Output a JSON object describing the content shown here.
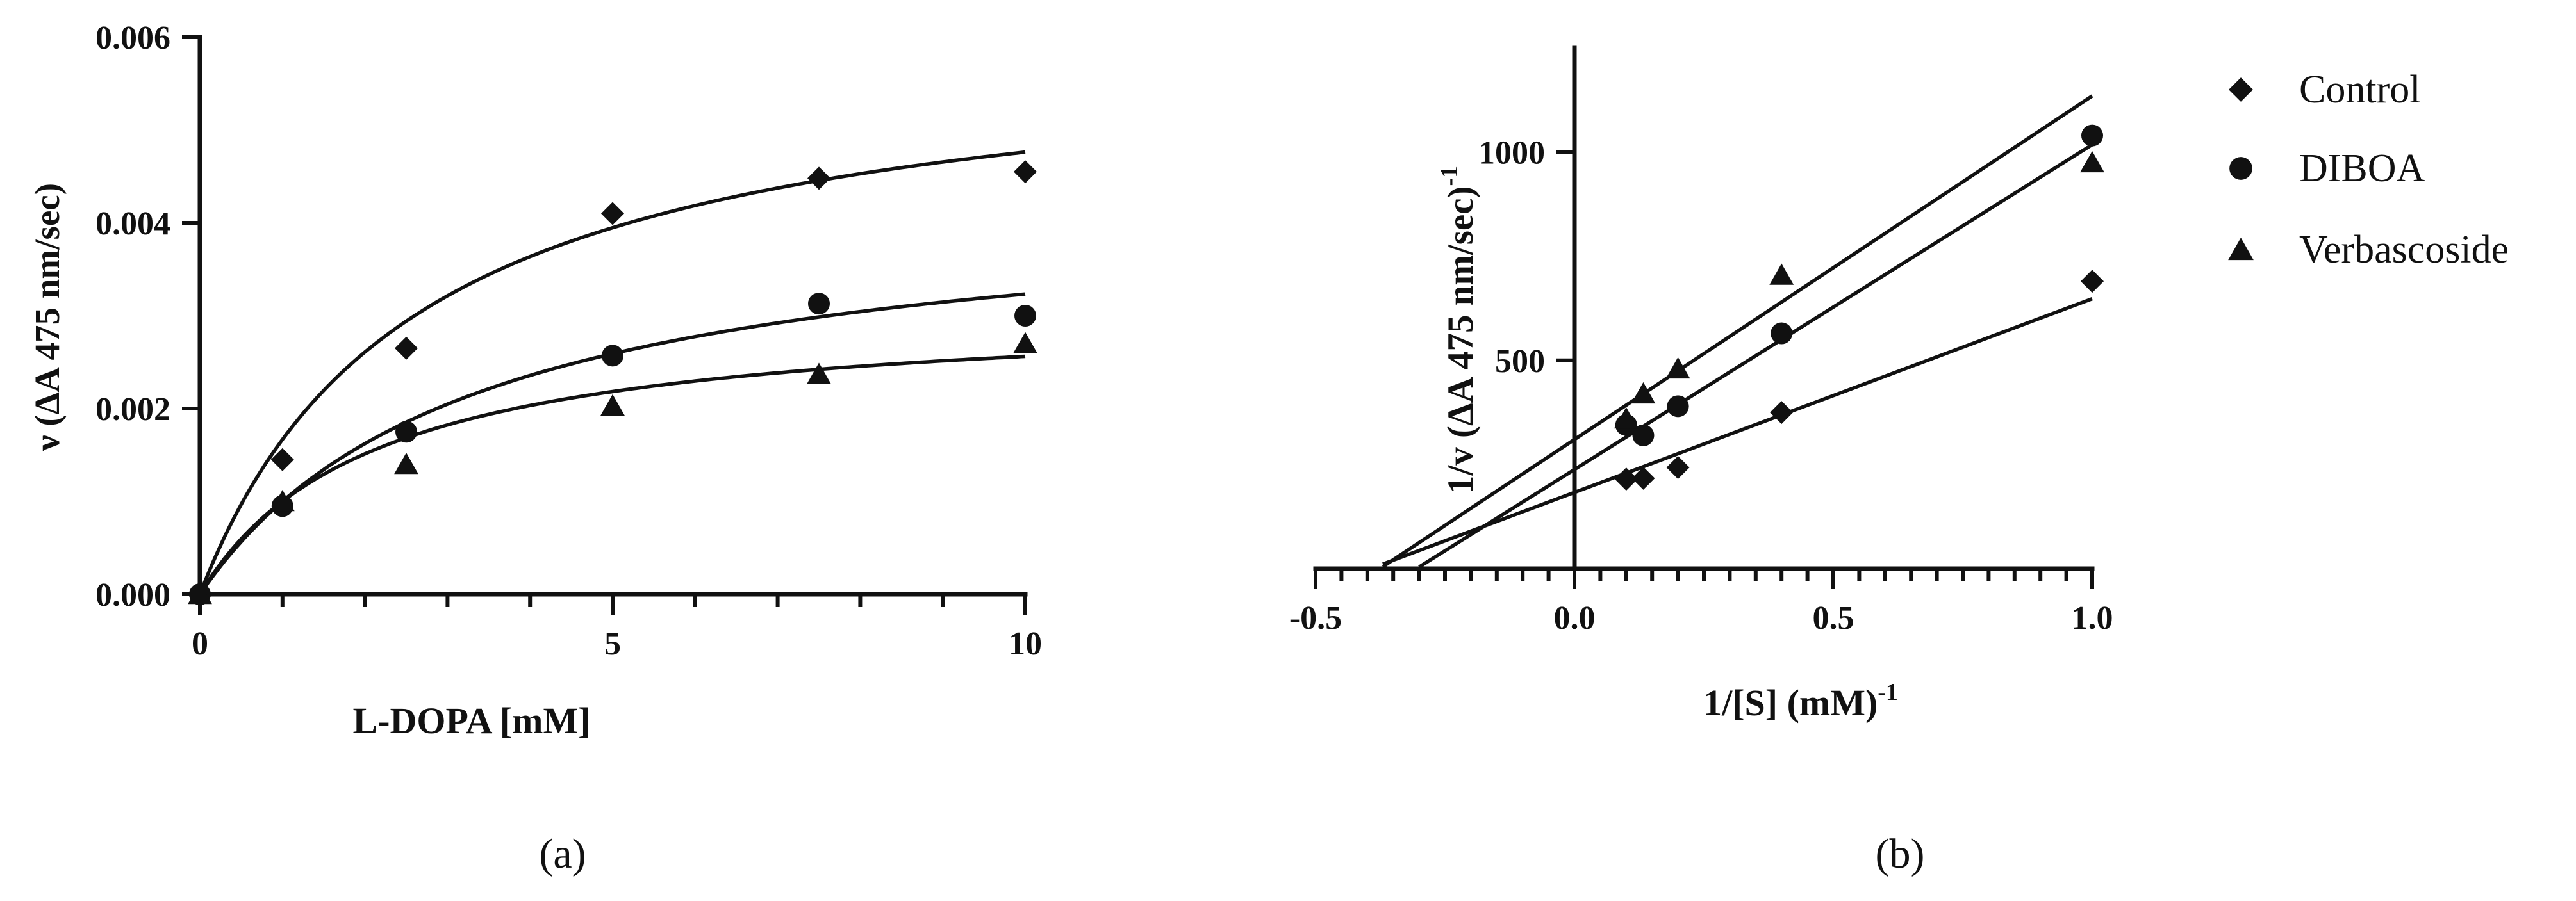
{
  "chart_data": [
    {
      "type": "scatter",
      "panel_label": "(a)",
      "xlabel": "L-DOPA [mM]",
      "ylabel": "ν (ΔA 475 nm/sec)",
      "xlim": [
        0,
        10
      ],
      "ylim": [
        0,
        0.006
      ],
      "x_ticks": [
        "0",
        "5",
        "10"
      ],
      "y_ticks": [
        "0.000",
        "0.002",
        "0.004",
        "0.006"
      ],
      "x_minor_step": 1,
      "series": [
        {
          "name": "Control",
          "marker": "diamond",
          "x": [
            0,
            1,
            2.5,
            5,
            7.5,
            10
          ],
          "y": [
            0.0,
            0.00145,
            0.00265,
            0.0041,
            0.00448,
            0.00455
          ],
          "fit": {
            "model": "michaelis-menten",
            "vmax": 0.006,
            "km": 2.6
          }
        },
        {
          "name": "DIBOA",
          "marker": "circle",
          "x": [
            0,
            1,
            2.5,
            5,
            7.5,
            10
          ],
          "y": [
            0.0,
            0.00095,
            0.00175,
            0.00257,
            0.00313,
            0.003
          ],
          "fit": {
            "model": "michaelis-menten",
            "vmax": 0.0043,
            "km": 3.3
          }
        },
        {
          "name": "Verbascoside",
          "marker": "triangle",
          "x": [
            0,
            1,
            2.5,
            5,
            7.5,
            10
          ],
          "y": [
            0.0,
            0.001,
            0.0014,
            0.00203,
            0.00237,
            0.0027
          ],
          "fit": {
            "model": "michaelis-menten",
            "vmax": 0.0031,
            "km": 2.1
          }
        }
      ]
    },
    {
      "type": "scatter",
      "panel_label": "(b)",
      "xlabel": "1/[S] (mM)",
      "xlabel_sup": "-1",
      "ylabel": "1/v (ΔA 475 nm/sec)",
      "ylabel_sup": "-1",
      "xlim": [
        -0.5,
        1.0
      ],
      "ylim": [
        0,
        1250
      ],
      "x_ticks": [
        "-0.5",
        "0.0",
        "0.5",
        "1.0"
      ],
      "y_ticks": [
        "500",
        "1000"
      ],
      "x_minor_step": 0.05,
      "series": [
        {
          "name": "Control",
          "marker": "diamond",
          "x": [
            0.1,
            0.133,
            0.2,
            0.4,
            1.0
          ],
          "y": [
            215,
            217,
            243,
            375,
            690
          ],
          "fit": {
            "model": "linear",
            "x_from": -0.37,
            "x_to": 1.0,
            "slope": 465,
            "intercept": 183
          }
        },
        {
          "name": "DIBOA",
          "marker": "circle",
          "x": [
            0.1,
            0.133,
            0.2,
            0.4,
            1.0
          ],
          "y": [
            345,
            320,
            390,
            565,
            1040
          ],
          "fit": {
            "model": "linear",
            "x_from": -0.3,
            "x_to": 1.0,
            "slope": 780,
            "intercept": 238
          }
        },
        {
          "name": "Verbascoside",
          "marker": "triangle",
          "x": [
            0.1,
            0.133,
            0.2,
            0.4,
            1.0
          ],
          "y": [
            360,
            420,
            480,
            705,
            975
          ],
          "fit": {
            "model": "linear",
            "x_from": -0.37,
            "x_to": 1.0,
            "slope": 825,
            "intercept": 310
          }
        }
      ]
    }
  ],
  "legend": {
    "items": [
      {
        "label": "Control",
        "marker": "diamond"
      },
      {
        "label": "DIBOA",
        "marker": "circle"
      },
      {
        "label": "Verbascoside",
        "marker": "triangle"
      }
    ]
  }
}
